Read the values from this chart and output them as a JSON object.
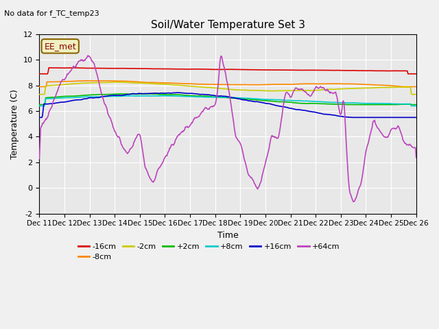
{
  "title": "Soil/Water Temperature Set 3",
  "xlabel": "Time",
  "ylabel": "Temperature (C)",
  "topleft_text": "No data for f_TC_temp23",
  "annotation_text": "EE_met",
  "ylim": [
    -2,
    12
  ],
  "xtick_labels": [
    "Dec 11",
    "Dec 12",
    "Dec 13",
    "Dec 14",
    "Dec 15",
    "Dec 16",
    "Dec 17",
    "Dec 18",
    "Dec 19",
    "Dec 20",
    "Dec 21",
    "Dec 22",
    "Dec 23",
    "Dec 24",
    "Dec 25",
    "Dec 26"
  ],
  "background_color": "#f0f0f0",
  "plot_bg_color": "#e8e8e8",
  "legend_entries": [
    "-16cm",
    "-8cm",
    "-2cm",
    "+2cm",
    "+8cm",
    "+16cm",
    "+64cm"
  ],
  "line_colors": [
    "#dd0000",
    "#ff8800",
    "#cccc00",
    "#00bb00",
    "#00cccc",
    "#0000cc",
    "#bb44bb"
  ],
  "grid_color": "#ffffff",
  "yticks": [
    -2,
    0,
    2,
    4,
    6,
    8,
    10,
    12
  ]
}
